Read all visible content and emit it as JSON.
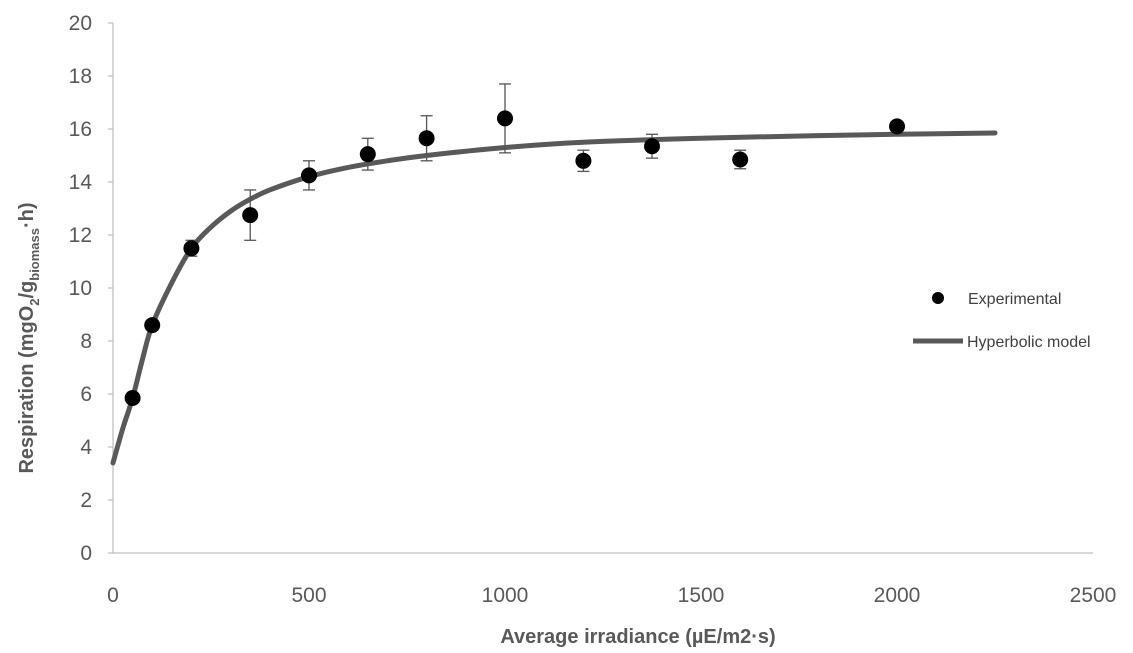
{
  "chart_data": {
    "type": "scatter",
    "title": "",
    "xlabel": "Average irradiance (µE/m2·s)",
    "ylabel_parts": {
      "main": "Respiration (mgO",
      "sub1": "2",
      "slash": "/g",
      "sub2": "biomass",
      "tail": "·h)"
    },
    "xlim": [
      0,
      2500
    ],
    "ylim": [
      0,
      20
    ],
    "x_ticks": [
      0,
      500,
      1000,
      1500,
      2000,
      2500
    ],
    "y_ticks": [
      0,
      2,
      4,
      6,
      8,
      10,
      12,
      14,
      16,
      18,
      20
    ],
    "grid": false,
    "legend_position": "right",
    "series": [
      {
        "name": "Experimental",
        "kind": "points",
        "color": "#000000",
        "points": [
          {
            "x": 50,
            "y": 5.85,
            "err": 0
          },
          {
            "x": 100,
            "y": 8.6,
            "err": 0
          },
          {
            "x": 200,
            "y": 11.5,
            "err": 0.3
          },
          {
            "x": 350,
            "y": 12.75,
            "err": 0.95
          },
          {
            "x": 500,
            "y": 14.25,
            "err": 0.55
          },
          {
            "x": 650,
            "y": 15.05,
            "err": 0.6
          },
          {
            "x": 800,
            "y": 15.65,
            "err": 0.85
          },
          {
            "x": 1000,
            "y": 16.4,
            "err": 1.3
          },
          {
            "x": 1200,
            "y": 14.8,
            "err": 0.4
          },
          {
            "x": 1375,
            "y": 15.35,
            "err": 0.45
          },
          {
            "x": 1600,
            "y": 14.85,
            "err": 0.35
          },
          {
            "x": 2000,
            "y": 16.1,
            "err": 0
          }
        ]
      },
      {
        "name": "Hyperbolic model",
        "kind": "line",
        "color": "#595959",
        "points": [
          {
            "x": 0,
            "y": 3.4
          },
          {
            "x": 25,
            "y": 4.7
          },
          {
            "x": 50,
            "y": 5.85
          },
          {
            "x": 75,
            "y": 7.3
          },
          {
            "x": 100,
            "y": 8.6
          },
          {
            "x": 150,
            "y": 10.2
          },
          {
            "x": 200,
            "y": 11.5
          },
          {
            "x": 250,
            "y": 12.3
          },
          {
            "x": 300,
            "y": 12.9
          },
          {
            "x": 350,
            "y": 13.35
          },
          {
            "x": 400,
            "y": 13.7
          },
          {
            "x": 500,
            "y": 14.2
          },
          {
            "x": 600,
            "y": 14.55
          },
          {
            "x": 700,
            "y": 14.8
          },
          {
            "x": 800,
            "y": 15.0
          },
          {
            "x": 1000,
            "y": 15.3
          },
          {
            "x": 1200,
            "y": 15.5
          },
          {
            "x": 1500,
            "y": 15.65
          },
          {
            "x": 1800,
            "y": 15.75
          },
          {
            "x": 2000,
            "y": 15.8
          },
          {
            "x": 2250,
            "y": 15.85
          }
        ]
      }
    ]
  }
}
